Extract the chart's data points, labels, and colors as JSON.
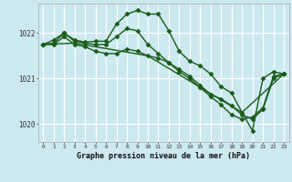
{
  "background_color": "#cde9f0",
  "plot_bg_color": "#cde9f0",
  "grid_color": "#ffffff",
  "line_color": "#1a5c1a",
  "title": "Graphe pression niveau de la mer (hPa)",
  "xlabel_ticks": [
    0,
    1,
    2,
    3,
    4,
    5,
    6,
    7,
    8,
    9,
    10,
    11,
    12,
    13,
    14,
    15,
    16,
    17,
    18,
    19,
    20,
    21,
    22,
    23
  ],
  "ylim": [
    1019.6,
    1022.65
  ],
  "yticks": [
    1020,
    1021,
    1022
  ],
  "lines": [
    {
      "x": [
        0,
        1,
        2,
        3,
        4,
        5,
        6,
        7,
        8,
        9,
        10,
        11,
        12,
        13,
        14,
        15,
        16,
        17,
        18,
        19,
        20,
        21,
        22,
        23
      ],
      "y": [
        1021.75,
        1021.85,
        1022.0,
        1021.85,
        1021.8,
        1021.82,
        1021.82,
        1022.2,
        1022.42,
        1022.5,
        1022.42,
        1022.42,
        1022.05,
        1021.6,
        1021.38,
        1021.28,
        1021.1,
        1020.82,
        1020.68,
        1020.25,
        1019.85,
        1021.0,
        1021.15,
        1021.1
      ],
      "marker": "D",
      "ms": 2.5,
      "lw": 1.0
    },
    {
      "x": [
        0,
        1,
        2,
        3,
        4,
        5,
        6,
        7,
        8,
        9,
        10,
        11,
        12,
        13,
        14,
        15,
        16,
        17,
        18,
        19,
        20,
        21,
        22,
        23
      ],
      "y": [
        1021.75,
        1021.78,
        1022.0,
        1021.82,
        1021.78,
        1021.75,
        1021.75,
        1021.92,
        1022.1,
        1022.05,
        1021.75,
        1021.55,
        1021.35,
        1021.15,
        1021.0,
        1020.8,
        1020.6,
        1020.42,
        1020.2,
        1020.1,
        1020.15,
        1020.35,
        1021.05,
        1021.1
      ],
      "marker": "D",
      "ms": 2.5,
      "lw": 1.0
    },
    {
      "x": [
        0,
        3,
        10,
        19,
        23
      ],
      "y": [
        1021.75,
        1021.78,
        1021.5,
        1020.25,
        1021.1
      ],
      "marker": null,
      "ms": 0,
      "lw": 1.0
    },
    {
      "x": [
        0,
        1,
        2,
        3,
        4,
        5,
        6,
        7,
        8,
        9,
        10,
        11,
        12,
        13,
        14,
        15,
        16,
        17,
        18,
        19,
        20,
        21,
        22,
        23
      ],
      "y": [
        1021.75,
        1021.75,
        1021.92,
        1021.75,
        1021.7,
        1021.6,
        1021.55,
        1021.55,
        1021.65,
        1021.6,
        1021.5,
        1021.45,
        1021.35,
        1021.2,
        1021.05,
        1020.85,
        1020.65,
        1020.55,
        1020.4,
        1020.2,
        1020.1,
        1020.32,
        1021.0,
        1021.1
      ],
      "marker": "D",
      "ms": 2.5,
      "lw": 1.0
    }
  ]
}
